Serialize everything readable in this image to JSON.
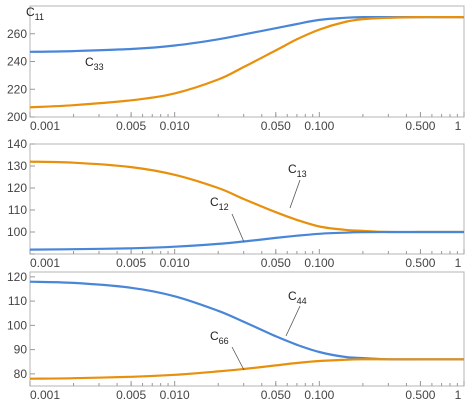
{
  "chart_data": [
    {
      "type": "line",
      "x_scale": "log",
      "xlim": [
        0.001,
        1
      ],
      "ylim": [
        200,
        280
      ],
      "x_ticks": [
        0.001,
        0.005,
        0.01,
        0.05,
        0.1,
        0.5,
        1
      ],
      "x_tick_labels": [
        "0.001",
        "0.005",
        "0.010",
        "0.050",
        "0.100",
        "0.500",
        "1"
      ],
      "y_ticks": [
        200,
        220,
        240,
        260
      ],
      "y_tick_labels": [
        "200",
        "220",
        "240",
        "260"
      ],
      "series": [
        {
          "name": "C11",
          "label_main": "C",
          "label_sub": "11",
          "color": "#4a86d8",
          "x": [
            0.001,
            0.002,
            0.005,
            0.01,
            0.02,
            0.03,
            0.05,
            0.07,
            0.1,
            0.15,
            0.2,
            0.3,
            0.5,
            0.7,
            1
          ],
          "y": [
            247,
            247.5,
            249,
            251.5,
            256,
            259.5,
            264,
            267,
            270,
            271.5,
            272,
            272,
            272,
            272,
            272
          ]
        },
        {
          "name": "C33",
          "label_main": "C",
          "label_sub": "33",
          "color": "#e8900c",
          "x": [
            0.001,
            0.002,
            0.005,
            0.01,
            0.02,
            0.03,
            0.05,
            0.07,
            0.1,
            0.15,
            0.2,
            0.3,
            0.5,
            0.7,
            1
          ],
          "y": [
            207,
            208.5,
            212,
            217,
            227,
            236,
            248,
            256,
            263,
            268.5,
            270.5,
            271.5,
            272,
            272,
            272
          ]
        }
      ]
    },
    {
      "type": "line",
      "x_scale": "log",
      "xlim": [
        0.001,
        1
      ],
      "ylim": [
        90,
        140
      ],
      "x_ticks": [
        0.001,
        0.005,
        0.01,
        0.05,
        0.1,
        0.5,
        1
      ],
      "x_tick_labels": [
        "0.001",
        "0.005",
        "0.010",
        "0.050",
        "0.100",
        "0.500",
        "1"
      ],
      "y_ticks": [
        90,
        100,
        110,
        120,
        130,
        140
      ],
      "y_tick_labels": [
        "",
        "100",
        "110",
        "120",
        "130",
        "140"
      ],
      "series": [
        {
          "name": "C13",
          "label_main": "C",
          "label_sub": "13",
          "color": "#e8900c",
          "x": [
            0.001,
            0.002,
            0.005,
            0.01,
            0.02,
            0.03,
            0.05,
            0.07,
            0.1,
            0.15,
            0.2,
            0.3,
            0.5,
            0.7,
            1
          ],
          "y": [
            132,
            131.5,
            129.5,
            126,
            120,
            115,
            109,
            105.5,
            102.5,
            101,
            100.5,
            100,
            100,
            100,
            100
          ]
        },
        {
          "name": "C12",
          "label_main": "C",
          "label_sub": "12",
          "color": "#4a86d8",
          "x": [
            0.001,
            0.002,
            0.005,
            0.01,
            0.02,
            0.03,
            0.05,
            0.07,
            0.1,
            0.15,
            0.2,
            0.3,
            0.5,
            0.7,
            1
          ],
          "y": [
            92,
            92.2,
            92.6,
            93.3,
            94.6,
            95.7,
            97.3,
            98.3,
            99.2,
            99.7,
            99.9,
            100,
            100,
            100,
            100
          ]
        }
      ]
    },
    {
      "type": "line",
      "x_scale": "log",
      "xlim": [
        0.001,
        1
      ],
      "ylim": [
        75,
        122
      ],
      "x_ticks": [
        0.001,
        0.005,
        0.01,
        0.05,
        0.1,
        0.5,
        1
      ],
      "x_tick_labels": [
        "0.001",
        "0.005",
        "0.010",
        "0.050",
        "0.100",
        "0.500",
        "1"
      ],
      "y_ticks": [
        80,
        90,
        100,
        110,
        120
      ],
      "y_tick_labels": [
        "80",
        "90",
        "100",
        "110",
        "120"
      ],
      "series": [
        {
          "name": "C44",
          "label_main": "C",
          "label_sub": "44",
          "color": "#4a86d8",
          "x": [
            0.001,
            0.002,
            0.005,
            0.01,
            0.02,
            0.03,
            0.05,
            0.07,
            0.1,
            0.15,
            0.2,
            0.3,
            0.5,
            0.7,
            1
          ],
          "y": [
            118,
            117.5,
            115.5,
            112,
            106,
            101.5,
            95.5,
            92,
            89,
            87,
            86.5,
            86,
            86,
            86,
            86
          ]
        },
        {
          "name": "C66",
          "label_main": "C",
          "label_sub": "66",
          "color": "#e8900c",
          "x": [
            0.001,
            0.002,
            0.005,
            0.01,
            0.02,
            0.03,
            0.05,
            0.07,
            0.1,
            0.15,
            0.2,
            0.3,
            0.5,
            0.7,
            1
          ],
          "y": [
            78,
            78.2,
            78.8,
            79.6,
            81,
            82,
            83.5,
            84.5,
            85.3,
            85.8,
            86,
            86,
            86,
            86,
            86
          ]
        }
      ]
    }
  ]
}
